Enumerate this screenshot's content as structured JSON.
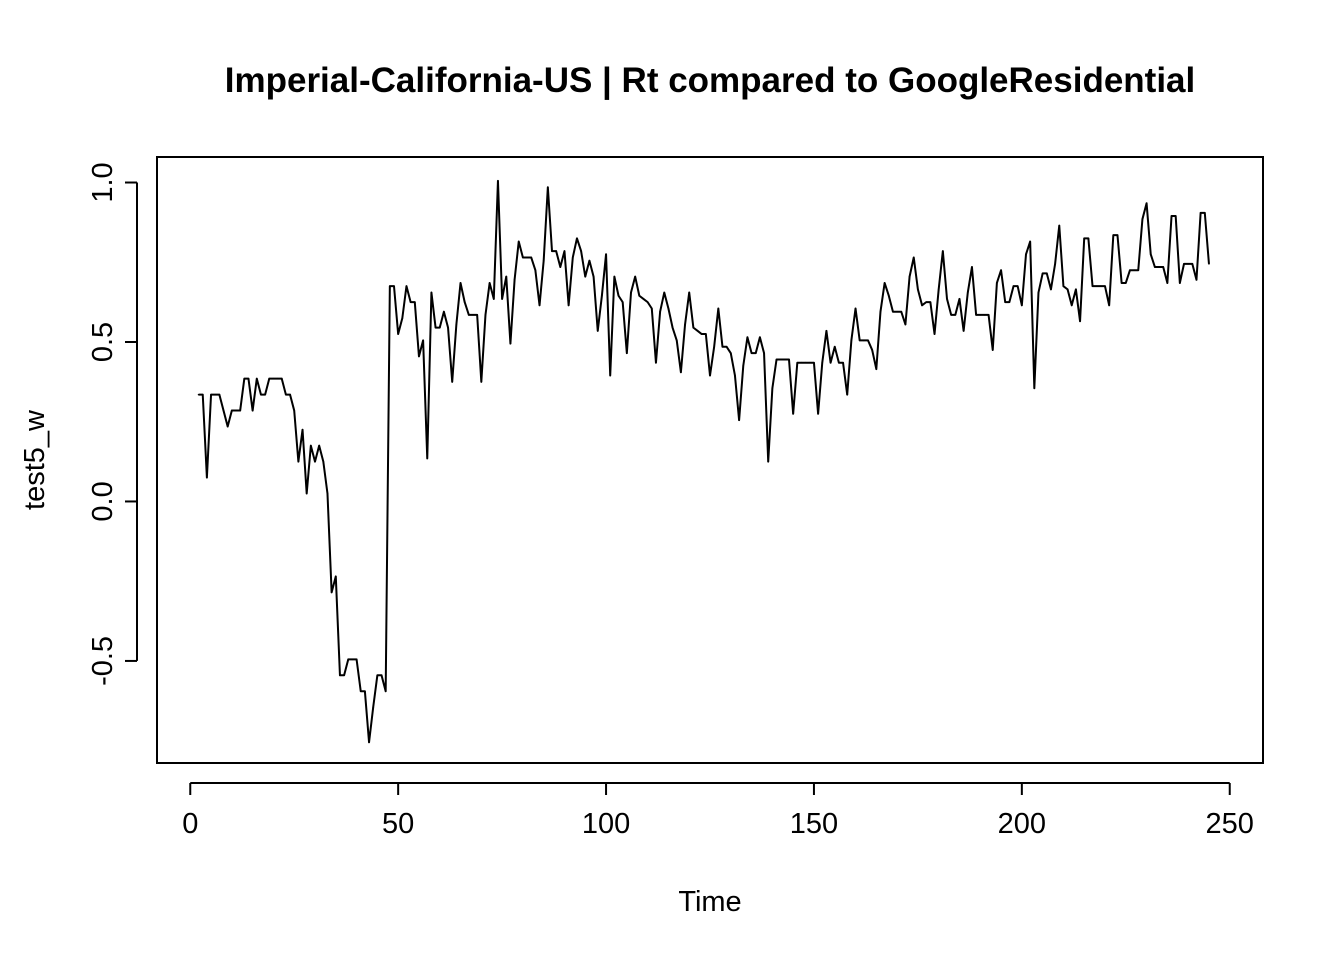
{
  "chart_data": {
    "type": "line",
    "title": "Imperial-California-US | Rt compared to GoogleResidential",
    "xlabel": "Time",
    "ylabel": "test5_w",
    "xlim": [
      -8,
      258
    ],
    "ylim": [
      -0.82,
      1.08
    ],
    "x_ticks": [
      0,
      50,
      100,
      150,
      200,
      250
    ],
    "x_tick_labels": [
      "0",
      "50",
      "100",
      "150",
      "200",
      "250"
    ],
    "y_ticks": [
      -0.5,
      0.0,
      0.5,
      1.0
    ],
    "y_tick_labels": [
      "-0.5",
      "0.0",
      "0.5",
      "1.0"
    ],
    "grid": false,
    "line_color": "#000000",
    "series": [
      {
        "x_start": 2,
        "values": [
          0.335,
          0.335,
          0.075,
          0.335,
          0.335,
          0.335,
          0.285,
          0.235,
          0.285,
          0.285,
          0.285,
          0.385,
          0.385,
          0.285,
          0.385,
          0.335,
          0.335,
          0.385,
          0.385,
          0.385,
          0.385,
          0.335,
          0.335,
          0.285,
          0.125,
          0.225,
          0.025,
          0.175,
          0.125,
          0.175,
          0.125,
          0.025,
          -0.285,
          -0.235,
          -0.545,
          -0.545,
          -0.495,
          -0.495,
          -0.495,
          -0.595,
          -0.595,
          -0.755,
          -0.645,
          -0.545,
          -0.545,
          -0.595,
          0.675,
          0.675,
          0.525,
          0.575,
          0.675,
          0.625,
          0.625,
          0.455,
          0.505,
          0.135,
          0.655,
          0.545,
          0.545,
          0.595,
          0.545,
          0.375,
          0.555,
          0.685,
          0.625,
          0.585,
          0.585,
          0.585,
          0.375,
          0.585,
          0.685,
          0.635,
          1.005,
          0.635,
          0.705,
          0.495,
          0.695,
          0.815,
          0.765,
          0.765,
          0.765,
          0.725,
          0.615,
          0.755,
          0.985,
          0.785,
          0.785,
          0.735,
          0.785,
          0.615,
          0.765,
          0.825,
          0.785,
          0.705,
          0.755,
          0.705,
          0.535,
          0.645,
          0.775,
          0.395,
          0.705,
          0.645,
          0.625,
          0.465,
          0.655,
          0.705,
          0.645,
          0.635,
          0.625,
          0.605,
          0.435,
          0.595,
          0.655,
          0.605,
          0.545,
          0.505,
          0.405,
          0.555,
          0.655,
          0.545,
          0.535,
          0.525,
          0.525,
          0.395,
          0.485,
          0.605,
          0.485,
          0.485,
          0.465,
          0.395,
          0.255,
          0.425,
          0.515,
          0.465,
          0.465,
          0.515,
          0.465,
          0.125,
          0.355,
          0.445,
          0.445,
          0.445,
          0.445,
          0.275,
          0.435,
          0.435,
          0.435,
          0.435,
          0.435,
          0.275,
          0.435,
          0.535,
          0.435,
          0.485,
          0.435,
          0.435,
          0.335,
          0.505,
          0.605,
          0.505,
          0.505,
          0.505,
          0.475,
          0.415,
          0.595,
          0.685,
          0.645,
          0.595,
          0.595,
          0.595,
          0.555,
          0.705,
          0.765,
          0.665,
          0.615,
          0.625,
          0.625,
          0.525,
          0.665,
          0.785,
          0.635,
          0.585,
          0.585,
          0.635,
          0.535,
          0.655,
          0.735,
          0.585,
          0.585,
          0.585,
          0.585,
          0.475,
          0.685,
          0.725,
          0.625,
          0.625,
          0.675,
          0.675,
          0.615,
          0.775,
          0.815,
          0.355,
          0.655,
          0.715,
          0.715,
          0.665,
          0.745,
          0.865,
          0.675,
          0.665,
          0.615,
          0.665,
          0.565,
          0.825,
          0.825,
          0.675,
          0.675,
          0.675,
          0.675,
          0.615,
          0.835,
          0.835,
          0.685,
          0.685,
          0.725,
          0.725,
          0.725,
          0.885,
          0.935,
          0.775,
          0.735,
          0.735,
          0.735,
          0.685,
          0.895,
          0.895,
          0.685,
          0.745,
          0.745,
          0.745,
          0.695,
          0.905,
          0.905,
          0.745
        ]
      }
    ]
  }
}
